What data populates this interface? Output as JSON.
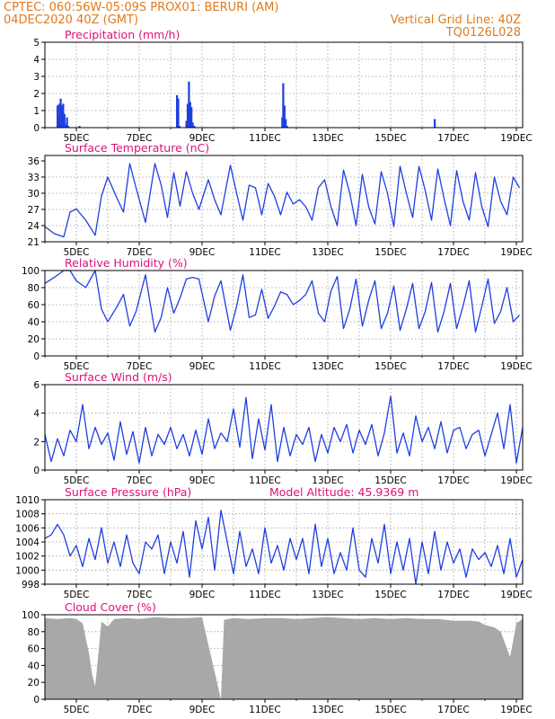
{
  "header": {
    "line1_left": "CPTEC:   060:56W-05:09S   PROX01: BERURI (AM)",
    "line2_left": "04DEC2020 40Z (GMT)",
    "line2_right": "Vertical Grid Line: 40Z",
    "line3_right": "TQ0126L028"
  },
  "colors": {
    "header": "#e07a1c",
    "title": "#e0107a",
    "series": "#1f3fe0",
    "cloud": "#a8a8a8",
    "grid": "#9a9a9a"
  },
  "x_tick_labels": [
    "5DEC",
    "7DEC",
    "9DEC",
    "11DEC",
    "13DEC",
    "15DEC",
    "17DEC",
    "19DEC"
  ],
  "chart_data": [
    {
      "type": "bar",
      "title": "Precipitation (mm/h)",
      "ylim": [
        0,
        5
      ],
      "y_ticks": [
        "0",
        "1",
        "2",
        "3",
        "4",
        "5"
      ],
      "x_unit": "days since 04DEC2020 00Z",
      "bars": [
        [
          0.4,
          1.3
        ],
        [
          0.43,
          0.6
        ],
        [
          0.46,
          1.4
        ],
        [
          0.5,
          1.7
        ],
        [
          0.54,
          1.3
        ],
        [
          0.58,
          1.4
        ],
        [
          0.62,
          0.8
        ],
        [
          0.66,
          0.2
        ],
        [
          0.7,
          0.6
        ],
        [
          0.74,
          0.1
        ],
        [
          1.1,
          0.1
        ],
        [
          4.2,
          1.9
        ],
        [
          4.24,
          1.7
        ],
        [
          4.28,
          0.1
        ],
        [
          4.5,
          0.4
        ],
        [
          4.54,
          1.4
        ],
        [
          4.58,
          2.7
        ],
        [
          4.62,
          1.5
        ],
        [
          4.66,
          1.2
        ],
        [
          4.7,
          0.3
        ],
        [
          4.75,
          0.1
        ],
        [
          7.55,
          0.6
        ],
        [
          7.58,
          2.6
        ],
        [
          7.62,
          1.3
        ],
        [
          7.66,
          0.5
        ],
        [
          7.7,
          0.1
        ],
        [
          12.4,
          0.5
        ]
      ]
    },
    {
      "type": "line",
      "title": "Surface Temperature (nC)",
      "ylim": [
        21,
        37
      ],
      "y_ticks": [
        "21",
        "24",
        "27",
        "30",
        "33",
        "36"
      ],
      "x": [
        0.0,
        0.3,
        0.6,
        0.8,
        1.0,
        1.3,
        1.6,
        1.8,
        2.0,
        2.3,
        2.5,
        2.7,
        2.9,
        3.2,
        3.5,
        3.7,
        3.9,
        4.1,
        4.3,
        4.5,
        4.7,
        4.9,
        5.2,
        5.4,
        5.6,
        5.9,
        6.1,
        6.3,
        6.5,
        6.7,
        6.9,
        7.1,
        7.3,
        7.5,
        7.7,
        7.9,
        8.1,
        8.3,
        8.5,
        8.7,
        8.9,
        9.1,
        9.3,
        9.5,
        9.7,
        9.9,
        10.1,
        10.3,
        10.5,
        10.7,
        10.9,
        11.1,
        11.3,
        11.5,
        11.7,
        11.9,
        12.1,
        12.3,
        12.5,
        12.7,
        12.9,
        13.1,
        13.3,
        13.5,
        13.7,
        13.9,
        14.1,
        14.3,
        14.5,
        14.7,
        14.9,
        15.1
      ],
      "y": [
        23.8,
        22.5,
        21.9,
        26.5,
        27.1,
        25.0,
        22.2,
        29.5,
        33.0,
        29.0,
        26.5,
        35.5,
        31.0,
        24.6,
        35.5,
        31.5,
        25.5,
        33.8,
        27.6,
        34.0,
        30.0,
        27.0,
        32.5,
        28.8,
        26.0,
        35.2,
        30.0,
        25.0,
        31.5,
        31.0,
        26.0,
        31.8,
        29.5,
        26.0,
        30.2,
        28.0,
        28.8,
        27.5,
        25.0,
        31.0,
        32.5,
        27.5,
        24.0,
        34.3,
        30.0,
        24.0,
        33.5,
        27.5,
        24.3,
        34.0,
        30.0,
        23.8,
        35.0,
        30.0,
        25.5,
        35.0,
        30.5,
        25.0,
        34.5,
        29.0,
        24.0,
        34.2,
        28.5,
        25.0,
        33.8,
        27.5,
        23.8,
        33.0,
        28.5,
        26.0,
        33.0,
        31.0
      ]
    },
    {
      "type": "line",
      "title": "Relative Humidity (%)",
      "ylim": [
        0,
        100
      ],
      "y_ticks": [
        "0",
        "20",
        "40",
        "60",
        "80",
        "100"
      ],
      "x": [
        0.0,
        0.3,
        0.6,
        0.8,
        1.0,
        1.3,
        1.6,
        1.8,
        2.0,
        2.3,
        2.5,
        2.7,
        2.9,
        3.2,
        3.5,
        3.7,
        3.9,
        4.1,
        4.3,
        4.5,
        4.7,
        4.9,
        5.2,
        5.4,
        5.6,
        5.9,
        6.1,
        6.3,
        6.5,
        6.7,
        6.9,
        7.1,
        7.3,
        7.5,
        7.7,
        7.9,
        8.1,
        8.3,
        8.5,
        8.7,
        8.9,
        9.1,
        9.3,
        9.5,
        9.7,
        9.9,
        10.1,
        10.3,
        10.5,
        10.7,
        10.9,
        11.1,
        11.3,
        11.5,
        11.7,
        11.9,
        12.1,
        12.3,
        12.5,
        12.7,
        12.9,
        13.1,
        13.3,
        13.5,
        13.7,
        13.9,
        14.1,
        14.3,
        14.5,
        14.7,
        14.9,
        15.1
      ],
      "y": [
        85,
        92,
        100,
        100,
        88,
        80,
        100,
        55,
        40,
        58,
        72,
        35,
        52,
        95,
        28,
        45,
        80,
        50,
        68,
        90,
        92,
        90,
        40,
        70,
        88,
        30,
        58,
        95,
        45,
        48,
        78,
        44,
        58,
        75,
        72,
        60,
        65,
        72,
        88,
        50,
        40,
        76,
        93,
        32,
        55,
        90,
        35,
        65,
        88,
        32,
        50,
        82,
        30,
        55,
        85,
        32,
        52,
        86,
        28,
        52,
        85,
        32,
        58,
        88,
        28,
        58,
        90,
        38,
        52,
        80,
        40,
        48
      ]
    },
    {
      "type": "line",
      "title": "Surface Wind (m/s)",
      "ylim": [
        0,
        6
      ],
      "y_ticks": [
        "0",
        "2",
        "4",
        "6"
      ],
      "x": [
        0.0,
        0.2,
        0.4,
        0.6,
        0.8,
        1.0,
        1.2,
        1.4,
        1.6,
        1.8,
        2.0,
        2.2,
        2.4,
        2.6,
        2.8,
        3.0,
        3.2,
        3.4,
        3.6,
        3.8,
        4.0,
        4.2,
        4.4,
        4.6,
        4.8,
        5.0,
        5.2,
        5.4,
        5.6,
        5.8,
        6.0,
        6.2,
        6.4,
        6.6,
        6.8,
        7.0,
        7.2,
        7.4,
        7.6,
        7.8,
        8.0,
        8.2,
        8.4,
        8.6,
        8.8,
        9.0,
        9.2,
        9.4,
        9.6,
        9.8,
        10.0,
        10.2,
        10.4,
        10.6,
        10.8,
        11.0,
        11.2,
        11.4,
        11.6,
        11.8,
        12.0,
        12.2,
        12.4,
        12.6,
        12.8,
        13.0,
        13.2,
        13.4,
        13.6,
        13.8,
        14.0,
        14.2,
        14.4,
        14.6,
        14.8,
        15.0,
        15.2
      ],
      "y": [
        2.5,
        0.6,
        2.2,
        1.0,
        2.8,
        2.0,
        4.6,
        1.5,
        3.0,
        1.8,
        2.6,
        0.7,
        3.4,
        1.1,
        2.7,
        0.5,
        3.0,
        1.0,
        2.5,
        1.8,
        3.0,
        1.5,
        2.5,
        1.0,
        2.8,
        1.1,
        3.6,
        1.5,
        2.6,
        2.0,
        4.3,
        1.6,
        5.1,
        0.8,
        3.6,
        1.4,
        4.6,
        0.6,
        3.0,
        1.0,
        2.5,
        1.8,
        3.0,
        0.6,
        2.5,
        1.2,
        3.0,
        2.0,
        3.2,
        1.2,
        2.8,
        1.8,
        3.2,
        1.0,
        2.6,
        5.2,
        1.2,
        2.6,
        1.0,
        3.8,
        2.0,
        3.0,
        1.5,
        3.4,
        1.2,
        2.8,
        3.0,
        1.5,
        2.5,
        2.8,
        1.0,
        2.5,
        4.0,
        1.5,
        4.6,
        0.5,
        3.0
      ]
    },
    {
      "type": "line",
      "title": "Surface Pressure (hPa)",
      "annotation": "Model Altitude: 45.9369 m",
      "ylim": [
        998,
        1010
      ],
      "y_ticks": [
        "998",
        "1000",
        "1002",
        "1004",
        "1006",
        "1008",
        "1010"
      ],
      "x": [
        0.0,
        0.2,
        0.4,
        0.6,
        0.8,
        1.0,
        1.2,
        1.4,
        1.6,
        1.8,
        2.0,
        2.2,
        2.4,
        2.6,
        2.8,
        3.0,
        3.2,
        3.4,
        3.6,
        3.8,
        4.0,
        4.2,
        4.4,
        4.6,
        4.8,
        5.0,
        5.2,
        5.4,
        5.6,
        5.8,
        6.0,
        6.2,
        6.4,
        6.6,
        6.8,
        7.0,
        7.2,
        7.4,
        7.6,
        7.8,
        8.0,
        8.2,
        8.4,
        8.6,
        8.8,
        9.0,
        9.2,
        9.4,
        9.6,
        9.8,
        10.0,
        10.2,
        10.4,
        10.6,
        10.8,
        11.0,
        11.2,
        11.4,
        11.6,
        11.8,
        12.0,
        12.2,
        12.4,
        12.6,
        12.8,
        13.0,
        13.2,
        13.4,
        13.6,
        13.8,
        14.0,
        14.2,
        14.4,
        14.6,
        14.8,
        15.0,
        15.2
      ],
      "y": [
        1004.5,
        1005.0,
        1006.5,
        1005.0,
        1002.0,
        1003.5,
        1000.5,
        1004.5,
        1001.5,
        1006.0,
        1001.0,
        1004.0,
        1000.5,
        1005.0,
        1001.0,
        999.5,
        1004.0,
        1003.0,
        1005.0,
        999.5,
        1004.0,
        1001.0,
        1005.5,
        999.0,
        1007.0,
        1003.0,
        1007.5,
        1000.0,
        1008.5,
        1004.0,
        999.5,
        1005.5,
        1000.5,
        1003.0,
        999.5,
        1006.0,
        1001.0,
        1003.5,
        1000.0,
        1004.5,
        1001.5,
        1004.5,
        999.5,
        1006.5,
        1000.5,
        1004.5,
        999.5,
        1002.5,
        1000.0,
        1006.0,
        1000.0,
        999.0,
        1004.5,
        1001.0,
        1006.5,
        999.5,
        1004.0,
        1000.0,
        1004.5,
        998.0,
        1004.0,
        999.5,
        1005.5,
        1000.0,
        1004.0,
        1001.0,
        1003.0,
        999.0,
        1003.0,
        1001.5,
        1002.5,
        1000.5,
        1003.5,
        999.5,
        1004.5,
        999.0,
        1001.5
      ]
    },
    {
      "type": "area",
      "title": "Cloud Cover (%)",
      "ylim": [
        0,
        100
      ],
      "y_ticks": [
        "0",
        "20",
        "40",
        "60",
        "80",
        "100"
      ],
      "x": [
        0.0,
        0.4,
        0.8,
        1.0,
        1.2,
        1.3,
        1.4,
        1.5,
        1.6,
        1.8,
        2.0,
        2.2,
        2.6,
        3.0,
        3.5,
        4.0,
        4.5,
        5.0,
        5.6,
        5.7,
        6.0,
        6.5,
        7.0,
        7.5,
        8.0,
        8.5,
        9.0,
        9.5,
        10.0,
        10.5,
        11.0,
        11.5,
        12.0,
        12.5,
        13.0,
        13.5,
        13.8,
        14.0,
        14.3,
        14.5,
        14.8,
        15.0,
        15.2
      ],
      "y": [
        96,
        95,
        96,
        95,
        90,
        72,
        55,
        30,
        15,
        92,
        86,
        95,
        96,
        95,
        97,
        96,
        96,
        97,
        0,
        94,
        96,
        95,
        96,
        96,
        95,
        96,
        97,
        96,
        95,
        96,
        95,
        96,
        95,
        95,
        93,
        93,
        92,
        88,
        85,
        80,
        50,
        90,
        95
      ]
    }
  ]
}
